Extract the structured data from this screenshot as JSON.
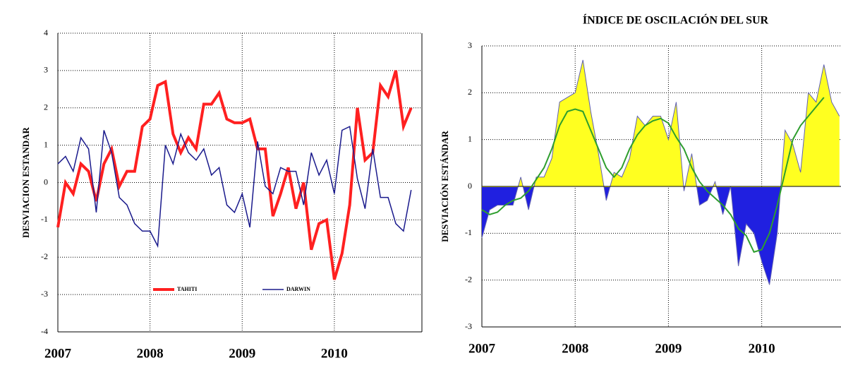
{
  "chart_data": [
    {
      "type": "line",
      "ylabel": "DESVIACION ESTANDAR",
      "x": [
        2007,
        2007.0833,
        2007.1667,
        2007.25,
        2007.3333,
        2007.4167,
        2007.5,
        2007.5833,
        2007.6667,
        2007.75,
        2007.8333,
        2007.9167,
        2008,
        2008.0833,
        2008.1667,
        2008.25,
        2008.3333,
        2008.4167,
        2008.5,
        2008.5833,
        2008.6667,
        2008.75,
        2008.8333,
        2008.9167,
        2009,
        2009.0833,
        2009.1667,
        2009.25,
        2009.3333,
        2009.4167,
        2009.5,
        2009.5833,
        2009.6667,
        2009.75,
        2009.8333,
        2009.9167,
        2010,
        2010.0833,
        2010.1667,
        2010.25,
        2010.3333,
        2010.4167,
        2010.5,
        2010.5833,
        2010.6667,
        2010.75,
        2010.8333
      ],
      "series": [
        {
          "name": "TAHITI",
          "color": "#ff2020",
          "width": 4,
          "values": [
            -1.2,
            0.0,
            -0.3,
            0.5,
            0.3,
            -0.5,
            0.5,
            0.9,
            -0.1,
            0.3,
            0.3,
            1.5,
            1.7,
            2.6,
            2.7,
            1.3,
            0.8,
            1.2,
            0.9,
            2.1,
            2.1,
            2.4,
            1.7,
            1.6,
            1.6,
            1.7,
            0.9,
            0.9,
            -0.9,
            -0.3,
            0.4,
            -0.7,
            0.0,
            -1.8,
            -1.1,
            -1.0,
            -2.6,
            -1.9,
            -0.6,
            2.0,
            0.6,
            0.8,
            2.6,
            2.3,
            3.0,
            1.5,
            2.0
          ]
        },
        {
          "name": "DARWIN",
          "color": "#1a1a8c",
          "width": 1.5,
          "values": [
            0.5,
            0.7,
            0.3,
            1.2,
            0.9,
            -0.8,
            1.4,
            0.8,
            -0.4,
            -0.6,
            -1.1,
            -1.3,
            -1.3,
            -1.7,
            1.0,
            0.5,
            1.3,
            0.8,
            0.6,
            0.9,
            0.2,
            0.4,
            -0.6,
            -0.8,
            -0.3,
            -1.2,
            1.1,
            -0.1,
            -0.3,
            0.4,
            0.3,
            0.3,
            -0.6,
            0.8,
            0.2,
            0.6,
            -0.3,
            1.4,
            1.5,
            0.1,
            -0.7,
            0.9,
            -0.4,
            -0.4,
            -1.1,
            -1.3,
            -0.2
          ]
        }
      ],
      "xlim": [
        2007,
        2010.95
      ],
      "xticks": [
        2007,
        2008,
        2009,
        2010
      ],
      "ylim": [
        -4,
        4
      ],
      "yticks": [
        -4,
        -3,
        -2,
        -1,
        0,
        1,
        2,
        3,
        4
      ],
      "grid": true,
      "legend": "lower-center"
    },
    {
      "type": "area",
      "title": "ÍNDICE DE OSCILACIÓN DEL SUR",
      "ylabel": "DESVIACIÓN ESTÁNDAR",
      "x": [
        2007,
        2007.0833,
        2007.1667,
        2007.25,
        2007.3333,
        2007.4167,
        2007.5,
        2007.5833,
        2007.6667,
        2007.75,
        2007.8333,
        2007.9167,
        2008,
        2008.0833,
        2008.1667,
        2008.25,
        2008.3333,
        2008.4167,
        2008.5,
        2008.5833,
        2008.6667,
        2008.75,
        2008.8333,
        2008.9167,
        2009,
        2009.0833,
        2009.1667,
        2009.25,
        2009.3333,
        2009.4167,
        2009.5,
        2009.5833,
        2009.6667,
        2009.75,
        2009.8333,
        2009.9167,
        2010,
        2010.0833,
        2010.1667,
        2010.25,
        2010.3333,
        2010.4167,
        2010.5,
        2010.5833,
        2010.6667,
        2010.75,
        2010.8333
      ],
      "series": [
        {
          "color": "#2020e0",
          "positive_color": "#ffff20",
          "values": [
            -1.1,
            -0.5,
            -0.4,
            -0.4,
            -0.4,
            0.2,
            -0.5,
            0.2,
            0.2,
            0.6,
            1.8,
            1.9,
            2.0,
            2.7,
            1.6,
            0.7,
            -0.3,
            0.3,
            0.2,
            0.6,
            1.5,
            1.3,
            1.5,
            1.5,
            1.0,
            1.8,
            -0.1,
            0.7,
            -0.4,
            -0.3,
            0.1,
            -0.6,
            0.0,
            -1.7,
            -0.8,
            -1.0,
            -1.6,
            -2.1,
            -1.0,
            1.2,
            0.9,
            0.3,
            2.0,
            1.8,
            2.6,
            1.8,
            1.5
          ]
        },
        {
          "color": "#2e9e2e",
          "values": [
            -0.5,
            -0.6,
            -0.55,
            -0.4,
            -0.3,
            -0.25,
            -0.1,
            0.15,
            0.4,
            0.8,
            1.3,
            1.6,
            1.65,
            1.6,
            1.2,
            0.8,
            0.4,
            0.2,
            0.4,
            0.8,
            1.1,
            1.3,
            1.4,
            1.45,
            1.35,
            1.05,
            0.8,
            0.4,
            0.1,
            -0.1,
            -0.25,
            -0.4,
            -0.6,
            -0.9,
            -1.05,
            -1.4,
            -1.35,
            -1.0,
            -0.4,
            0.3,
            1.0,
            1.3,
            1.5,
            1.7,
            1.9,
            null,
            null
          ]
        }
      ],
      "xlim": [
        2007,
        2010.85
      ],
      "xticks": [
        2007,
        2008,
        2009,
        2010
      ],
      "ylim": [
        -3,
        3
      ],
      "yticks": [
        -3,
        -2,
        -1,
        0,
        1,
        2,
        3
      ],
      "grid": true
    }
  ]
}
